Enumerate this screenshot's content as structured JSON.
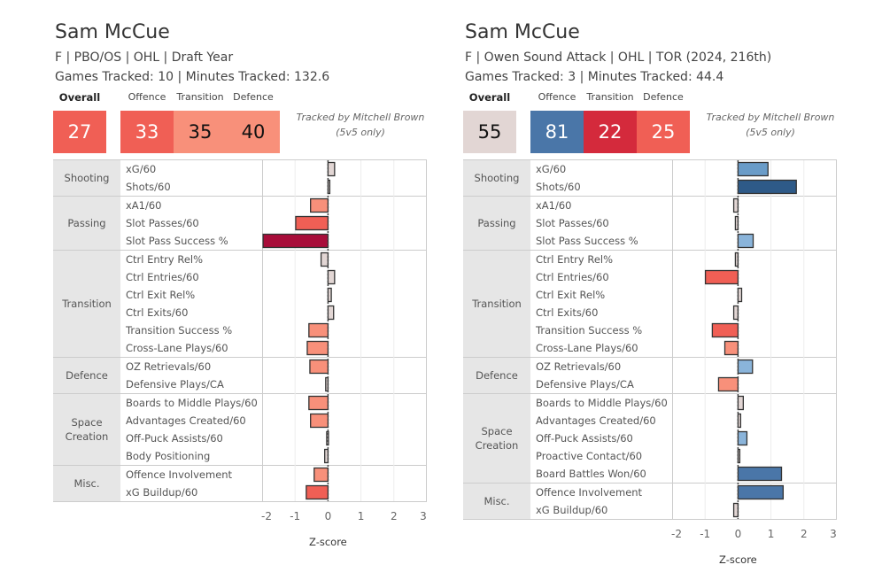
{
  "panels": [
    {
      "player_name": "Sam McCue",
      "subtitle": "F | PBO/OS | OHL | Draft Year",
      "tracking": "Games Tracked: 10 | Minutes Tracked: 132.6",
      "overall_label": "Overall",
      "overall": {
        "value": "27",
        "bg": "#f05f55",
        "fg": "#ffffff"
      },
      "categories": [
        {
          "label": "Offence",
          "value": "33",
          "bg": "#f05f55",
          "fg": "#ffffff"
        },
        {
          "label": "Transition",
          "value": "35",
          "bg": "#f8907a",
          "fg": "#111111"
        },
        {
          "label": "Defence",
          "value": "40",
          "bg": "#f8907a",
          "fg": "#111111"
        }
      ],
      "credit_line1": "Tracked by Mitchell Brown",
      "credit_line2": "(5v5 only)"
    },
    {
      "player_name": "Sam McCue",
      "subtitle": "F | Owen Sound Attack | OHL | TOR (2024, 216th)",
      "tracking": "Games Tracked: 3 | Minutes Tracked: 44.4",
      "overall_label": "Overall",
      "overall": {
        "value": "55",
        "bg": "#e2d6d4",
        "fg": "#111111"
      },
      "categories": [
        {
          "label": "Offence",
          "value": "81",
          "bg": "#4a76a8",
          "fg": "#ffffff"
        },
        {
          "label": "Transition",
          "value": "22",
          "bg": "#d42a3c",
          "fg": "#ffffff"
        },
        {
          "label": "Defence",
          "value": "25",
          "bg": "#f05f55",
          "fg": "#ffffff"
        }
      ],
      "credit_line1": "Tracked by Mitchell Brown",
      "credit_line2": "(5v5 only)"
    }
  ],
  "chart_data": [
    {
      "type": "bar",
      "orientation": "horizontal",
      "xlabel": "Z-score",
      "xlim": [
        -2,
        3
      ],
      "xticks": [
        "-2",
        "-1",
        "0",
        "1",
        "2",
        "3"
      ],
      "grid": true,
      "groups": [
        {
          "name": "Shooting",
          "metrics": [
            {
              "label": "xG/60",
              "value": 0.2
            },
            {
              "label": "Shots/60",
              "value": 0.03
            }
          ]
        },
        {
          "name": "Passing",
          "metrics": [
            {
              "label": "xA1/60",
              "value": -0.53
            },
            {
              "label": "Slot Passes/60",
              "value": -0.98
            },
            {
              "label": "Slot Pass Success %",
              "value": -1.97
            }
          ]
        },
        {
          "name": "Transition",
          "metrics": [
            {
              "label": "Ctrl Entry Rel%",
              "value": -0.21
            },
            {
              "label": "Ctrl Entries/60",
              "value": 0.2
            },
            {
              "label": "Ctrl Exit Rel%",
              "value": 0.1
            },
            {
              "label": "Ctrl Exits/60",
              "value": 0.17
            },
            {
              "label": "Transition Success %",
              "value": -0.58
            },
            {
              "label": "Cross-Lane Plays/60",
              "value": -0.63
            }
          ]
        },
        {
          "name": "Defence",
          "metrics": [
            {
              "label": "OZ Retrievals/60",
              "value": -0.55
            },
            {
              "label": "Defensive Plays/CA",
              "value": -0.07
            }
          ]
        },
        {
          "name": "Space Creation",
          "metrics": [
            {
              "label": "Boards to Middle Plays/60",
              "value": -0.58
            },
            {
              "label": "Advantages Created/60",
              "value": -0.53
            },
            {
              "label": "Off-Puck Assists/60",
              "value": -0.04
            },
            {
              "label": "Body Positioning",
              "value": -0.1
            }
          ]
        },
        {
          "name": "Misc.",
          "metrics": [
            {
              "label": "Offence Involvement",
              "value": -0.42
            },
            {
              "label": "xG Buildup/60",
              "value": -0.66
            }
          ]
        }
      ]
    },
    {
      "type": "bar",
      "orientation": "horizontal",
      "xlabel": "Z-score",
      "xlim": [
        -2,
        3
      ],
      "xticks": [
        "-2",
        "-1",
        "0",
        "1",
        "2",
        "3"
      ],
      "grid": true,
      "groups": [
        {
          "name": "Shooting",
          "metrics": [
            {
              "label": "xG/60",
              "value": 0.91
            },
            {
              "label": "Shots/60",
              "value": 1.77
            }
          ]
        },
        {
          "name": "Passing",
          "metrics": [
            {
              "label": "xA1/60",
              "value": -0.13
            },
            {
              "label": "Slot Passes/60",
              "value": -0.08
            },
            {
              "label": "Slot Pass Success %",
              "value": 0.46
            }
          ]
        },
        {
          "name": "Transition",
          "metrics": [
            {
              "label": "Ctrl Entry Rel%",
              "value": -0.08
            },
            {
              "label": "Ctrl Entries/60",
              "value": -0.99
            },
            {
              "label": "Ctrl Exit Rel%",
              "value": 0.11
            },
            {
              "label": "Ctrl Exits/60",
              "value": -0.13
            },
            {
              "label": "Transition Success %",
              "value": -0.78
            },
            {
              "label": "Cross-Lane Plays/60",
              "value": -0.4
            }
          ]
        },
        {
          "name": "Defence",
          "metrics": [
            {
              "label": "OZ Retrievals/60",
              "value": 0.44
            },
            {
              "label": "Defensive Plays/CA",
              "value": -0.59
            }
          ]
        },
        {
          "name": "Space Creation",
          "metrics": [
            {
              "label": "Boards to Middle Plays/60",
              "value": 0.16
            },
            {
              "label": "Advantages Created/60",
              "value": 0.08
            },
            {
              "label": "Off-Puck Assists/60",
              "value": 0.27
            },
            {
              "label": "Proactive Contact/60",
              "value": 0.05
            },
            {
              "label": "Board Battles Won/60",
              "value": 1.32
            }
          ]
        },
        {
          "name": "Misc.",
          "metrics": [
            {
              "label": "Offence Involvement",
              "value": 1.37
            },
            {
              "label": "xG Buildup/60",
              "value": -0.13
            }
          ]
        }
      ]
    }
  ],
  "color_scale": {
    "neutral": "#e2d6d4",
    "neg_light": "#f8907a",
    "neg_mid": "#f05f55",
    "neg_strong": "#a80d3a",
    "pos_light": "#8ab4da",
    "pos_mid": "#6a9cc8",
    "pos_strong": "#4a76a8",
    "pos_dark": "#2e5a88"
  }
}
